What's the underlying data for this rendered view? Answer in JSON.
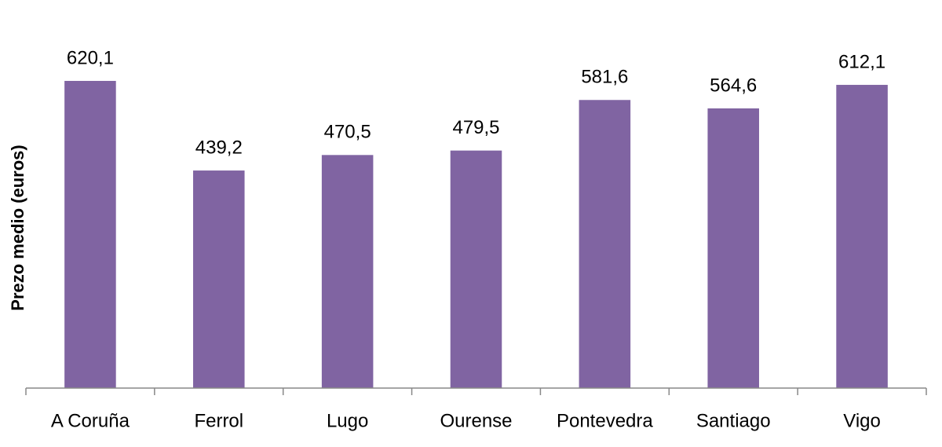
{
  "chart_data": {
    "type": "bar",
    "y_label": "Prezo medio (euros)",
    "categories": [
      "A Coruña",
      "Ferrol",
      "Lugo",
      "Ourense",
      "Pontevedra",
      "Santiago",
      "Vigo"
    ],
    "values": [
      620.1,
      439.2,
      470.5,
      479.5,
      581.6,
      564.6,
      612.1
    ],
    "value_labels": [
      "620,1",
      "439,2",
      "470,5",
      "479,5",
      "581,6",
      "564,6",
      "612,1"
    ],
    "color": "#8064a2",
    "ylim": [
      0,
      700
    ]
  }
}
